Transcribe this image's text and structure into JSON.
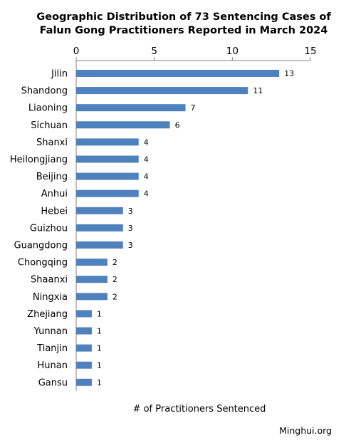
{
  "chart_data": {
    "type": "bar",
    "orientation": "horizontal",
    "title_lines": [
      "Geographic Distribution of 73 Sentencing Cases of",
      "Falun Gong Practitioners Reported in March 2024"
    ],
    "categories": [
      "Jilin",
      "Shandong",
      "Liaoning",
      "Sichuan",
      "Shanxi",
      "Heilongjiang",
      "Beijing",
      "Anhui",
      "Hebei",
      "Guizhou",
      "Guangdong",
      "Chongqing",
      "Shaanxi",
      "Ningxia",
      "Zhejiang",
      "Yunnan",
      "Tianjin",
      "Hunan",
      "Gansu"
    ],
    "values": [
      13,
      11,
      7,
      6,
      4,
      4,
      4,
      4,
      3,
      3,
      3,
      2,
      2,
      2,
      1,
      1,
      1,
      1,
      1
    ],
    "xlabel": "# of Practitioners Sentenced",
    "ylabel": "",
    "xlim": [
      0,
      15
    ],
    "xticks": [
      0,
      5,
      10,
      15
    ],
    "xaxis_position": "top",
    "data_labels": true,
    "grid": false,
    "legend": "none",
    "bar_color": "#4f81bd",
    "axis_color": "#808080"
  },
  "credit": "Minghui.org"
}
